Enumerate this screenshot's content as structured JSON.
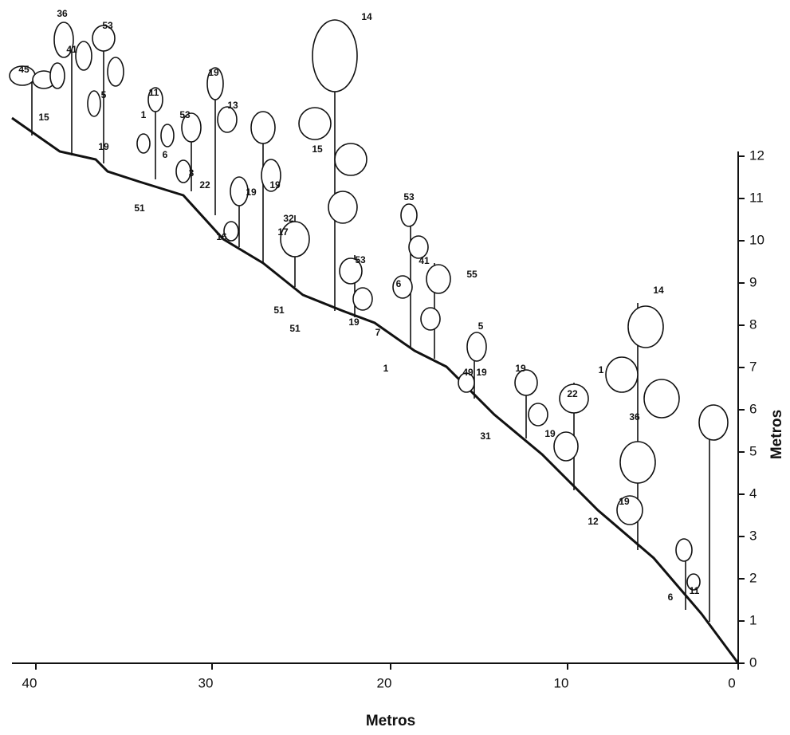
{
  "axes": {
    "x_label": "Metros",
    "x_ticks": [
      "40",
      "30",
      "20",
      "10",
      "0"
    ],
    "y_label": "Metros",
    "y_ticks": [
      "0",
      "1",
      "2",
      "3",
      "4",
      "5",
      "6",
      "7",
      "8",
      "9",
      "10",
      "11",
      "12"
    ]
  },
  "plant_labels": [
    "36",
    "53",
    "41",
    "45",
    "14",
    "19",
    "11",
    "13",
    "1",
    "53",
    "5",
    "15",
    "19",
    "6",
    "3",
    "22",
    "19",
    "19",
    "15",
    "51",
    "16",
    "32",
    "17",
    "53",
    "41",
    "55",
    "6",
    "53",
    "51",
    "51",
    "19",
    "7",
    "5",
    "14",
    "1",
    "49",
    "19",
    "19",
    "1",
    "22",
    "36",
    "31",
    "19",
    "19",
    "12",
    "11",
    "6"
  ]
}
